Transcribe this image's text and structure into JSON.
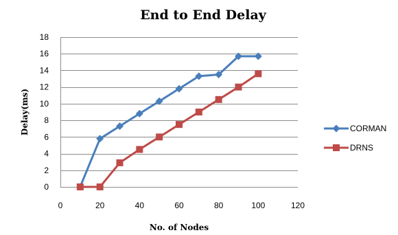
{
  "chart_data": {
    "type": "line",
    "title": "End to End Delay",
    "xlabel": "No. of Nodes",
    "ylabel": "Delay(ms)",
    "xlim": [
      0,
      120
    ],
    "ylim": [
      0,
      18
    ],
    "x_ticks": [
      0,
      20,
      40,
      60,
      80,
      100,
      120
    ],
    "y_ticks": [
      0,
      2,
      4,
      6,
      8,
      10,
      12,
      14,
      16,
      18
    ],
    "grid": "horizontal",
    "legend_position": "right",
    "series": [
      {
        "name": "CORMAN",
        "color": "#4a7ebb",
        "marker": "diamond",
        "x": [
          10,
          20,
          30,
          40,
          50,
          60,
          70,
          80,
          90,
          100
        ],
        "y": [
          0,
          5.8,
          7.3,
          8.8,
          10.3,
          11.8,
          13.3,
          13.5,
          15.7,
          15.7
        ]
      },
      {
        "name": "DRNS",
        "color": "#be4b48",
        "marker": "square",
        "x": [
          10,
          20,
          30,
          40,
          50,
          60,
          70,
          80,
          90,
          100
        ],
        "y": [
          0,
          0,
          2.9,
          4.5,
          6,
          7.5,
          9,
          10.5,
          12,
          13.6
        ]
      }
    ]
  }
}
